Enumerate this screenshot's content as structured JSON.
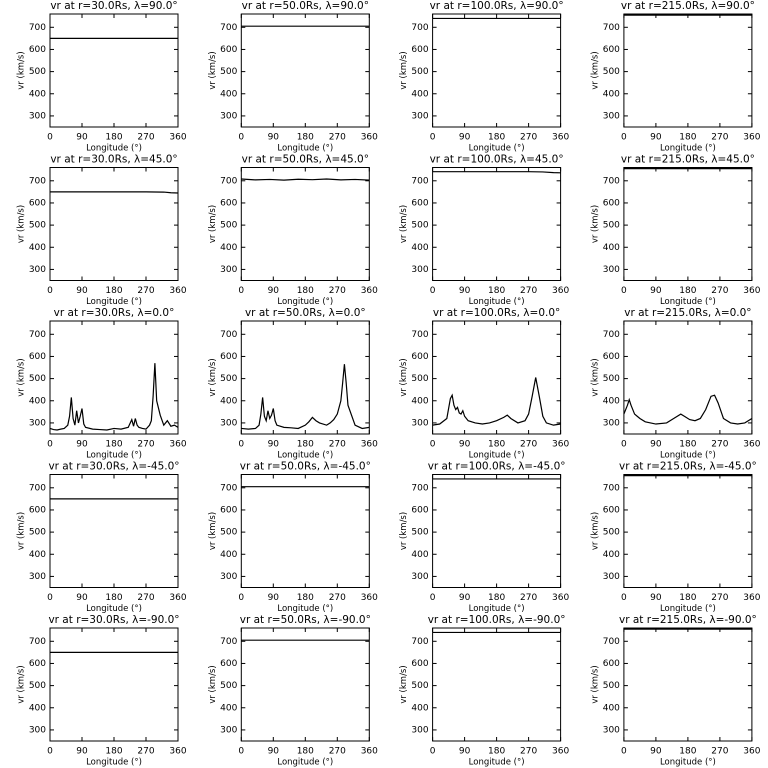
{
  "chart_data": [
    {
      "type": "line",
      "title": "vr at r=30.0Rs, λ=90.0°",
      "xlabel": "Longitude (°)",
      "ylabel": "vr (km/s)",
      "x": [
        0,
        360
      ],
      "values": [
        650,
        650
      ],
      "xlim": [
        0,
        360
      ],
      "ylim": [
        250,
        760
      ],
      "xticks": [
        0,
        90,
        180,
        270,
        360
      ],
      "yticks": [
        300,
        400,
        500,
        600,
        700
      ],
      "color": "#000000"
    },
    {
      "type": "line",
      "title": "vr at r=50.0Rs, λ=90.0°",
      "xlabel": "Longitude (°)",
      "ylabel": "vr (km/s)",
      "x": [
        0,
        360
      ],
      "values": [
        705,
        705
      ],
      "xlim": [
        0,
        360
      ],
      "ylim": [
        250,
        760
      ],
      "xticks": [
        0,
        90,
        180,
        270,
        360
      ],
      "yticks": [
        300,
        400,
        500,
        600,
        700
      ],
      "color": "#000000"
    },
    {
      "type": "line",
      "title": "vr at r=100.0Rs, λ=90.0°",
      "xlabel": "Longitude (°)",
      "ylabel": "vr (km/s)",
      "x": [
        0,
        360
      ],
      "values": [
        740,
        740
      ],
      "xlim": [
        0,
        360
      ],
      "ylim": [
        250,
        760
      ],
      "xticks": [
        0,
        90,
        180,
        270,
        360
      ],
      "yticks": [
        300,
        400,
        500,
        600,
        700
      ],
      "color": "#000000"
    },
    {
      "type": "line",
      "title": "vr at r=215.0Rs, λ=90.0°",
      "xlabel": "Longitude (°)",
      "ylabel": "vr (km/s)",
      "x": [
        0,
        360
      ],
      "values": [
        755,
        755
      ],
      "xlim": [
        0,
        360
      ],
      "ylim": [
        250,
        760
      ],
      "xticks": [
        0,
        90,
        180,
        270,
        360
      ],
      "yticks": [
        300,
        400,
        500,
        600,
        700
      ],
      "color": "#000000"
    },
    {
      "type": "line",
      "title": "vr at r=30.0Rs, λ=45.0°",
      "xlabel": "Longitude (°)",
      "ylabel": "vr (km/s)",
      "x": [
        0,
        90,
        180,
        270,
        320,
        340,
        360
      ],
      "values": [
        650,
        650,
        650,
        650,
        649,
        646,
        645
      ],
      "xlim": [
        0,
        360
      ],
      "ylim": [
        250,
        760
      ],
      "xticks": [
        0,
        90,
        180,
        270,
        360
      ],
      "yticks": [
        300,
        400,
        500,
        600,
        700
      ],
      "color": "#000000"
    },
    {
      "type": "line",
      "title": "vr at r=50.0Rs, λ=45.0°",
      "xlabel": "Longitude (°)",
      "ylabel": "vr (km/s)",
      "x": [
        0,
        40,
        80,
        120,
        160,
        200,
        240,
        280,
        320,
        360
      ],
      "values": [
        708,
        704,
        706,
        703,
        707,
        705,
        708,
        704,
        706,
        703
      ],
      "xlim": [
        0,
        360
      ],
      "ylim": [
        250,
        760
      ],
      "xticks": [
        0,
        90,
        180,
        270,
        360
      ],
      "yticks": [
        300,
        400,
        500,
        600,
        700
      ],
      "color": "#000000"
    },
    {
      "type": "line",
      "title": "vr at r=100.0Rs, λ=45.0°",
      "xlabel": "Longitude (°)",
      "ylabel": "vr (km/s)",
      "x": [
        0,
        90,
        180,
        270,
        310,
        340,
        360
      ],
      "values": [
        741,
        741,
        741,
        741,
        740,
        737,
        736
      ],
      "xlim": [
        0,
        360
      ],
      "ylim": [
        250,
        760
      ],
      "xticks": [
        0,
        90,
        180,
        270,
        360
      ],
      "yticks": [
        300,
        400,
        500,
        600,
        700
      ],
      "color": "#000000"
    },
    {
      "type": "line",
      "title": "vr at r=215.0Rs, λ=45.0°",
      "xlabel": "Longitude (°)",
      "ylabel": "vr (km/s)",
      "x": [
        0,
        360
      ],
      "values": [
        755,
        755
      ],
      "xlim": [
        0,
        360
      ],
      "ylim": [
        250,
        760
      ],
      "xticks": [
        0,
        90,
        180,
        270,
        360
      ],
      "yticks": [
        300,
        400,
        500,
        600,
        700
      ],
      "color": "#000000"
    },
    {
      "type": "line",
      "title": "vr at r=30.0Rs, λ=0.0°",
      "xlabel": "Longitude (°)",
      "ylabel": "vr (km/s)",
      "x": [
        0,
        10,
        20,
        30,
        40,
        50,
        55,
        60,
        65,
        70,
        75,
        80,
        85,
        90,
        95,
        100,
        120,
        140,
        160,
        180,
        200,
        220,
        230,
        235,
        240,
        245,
        250,
        260,
        270,
        280,
        285,
        290,
        295,
        300,
        310,
        320,
        330,
        340,
        350,
        360
      ],
      "values": [
        275,
        270,
        268,
        272,
        275,
        290,
        330,
        415,
        320,
        290,
        355,
        300,
        330,
        365,
        295,
        280,
        272,
        270,
        268,
        275,
        272,
        280,
        315,
        285,
        320,
        290,
        280,
        275,
        272,
        290,
        310,
        420,
        570,
        400,
        335,
        290,
        310,
        285,
        290,
        280
      ],
      "xlim": [
        0,
        360
      ],
      "ylim": [
        250,
        760
      ],
      "xticks": [
        0,
        90,
        180,
        270,
        360
      ],
      "yticks": [
        300,
        400,
        500,
        600,
        700
      ],
      "color": "#000000"
    },
    {
      "type": "line",
      "title": "vr at r=50.0Rs, λ=0.0°",
      "xlabel": "Longitude (°)",
      "ylabel": "vr (km/s)",
      "x": [
        0,
        20,
        40,
        50,
        55,
        60,
        65,
        70,
        75,
        80,
        85,
        90,
        95,
        100,
        120,
        140,
        160,
        180,
        190,
        200,
        210,
        220,
        240,
        250,
        260,
        270,
        280,
        285,
        290,
        295,
        300,
        320,
        340,
        360
      ],
      "values": [
        275,
        272,
        275,
        290,
        340,
        415,
        330,
        310,
        355,
        320,
        335,
        365,
        310,
        290,
        280,
        278,
        275,
        290,
        305,
        325,
        310,
        300,
        290,
        300,
        315,
        340,
        400,
        480,
        565,
        480,
        380,
        290,
        275,
        280
      ],
      "xlim": [
        0,
        360
      ],
      "ylim": [
        250,
        760
      ],
      "xticks": [
        0,
        90,
        180,
        270,
        360
      ],
      "yticks": [
        300,
        400,
        500,
        600,
        700
      ],
      "color": "#000000"
    },
    {
      "type": "line",
      "title": "vr at r=100.0Rs, λ=0.0°",
      "xlabel": "Longitude (°)",
      "ylabel": "vr (km/s)",
      "x": [
        0,
        20,
        40,
        50,
        55,
        60,
        65,
        70,
        75,
        80,
        85,
        90,
        100,
        120,
        140,
        160,
        180,
        200,
        210,
        220,
        240,
        260,
        270,
        280,
        290,
        300,
        310,
        320,
        340,
        360
      ],
      "values": [
        290,
        295,
        320,
        410,
        425,
        380,
        360,
        370,
        345,
        340,
        355,
        330,
        310,
        300,
        295,
        300,
        310,
        325,
        335,
        320,
        300,
        310,
        340,
        420,
        505,
        420,
        330,
        300,
        290,
        295
      ],
      "xlim": [
        0,
        360
      ],
      "ylim": [
        250,
        760
      ],
      "xticks": [
        0,
        90,
        180,
        270,
        360
      ],
      "yticks": [
        300,
        400,
        500,
        600,
        700
      ],
      "color": "#000000"
    },
    {
      "type": "line",
      "title": "vr at r=215.0Rs, λ=0.0°",
      "xlabel": "Longitude (°)",
      "ylabel": "vr (km/s)",
      "x": [
        0,
        10,
        15,
        20,
        30,
        45,
        60,
        90,
        120,
        140,
        160,
        170,
        185,
        200,
        215,
        230,
        245,
        255,
        265,
        280,
        300,
        320,
        340,
        360
      ],
      "values": [
        340,
        380,
        405,
        380,
        340,
        320,
        305,
        295,
        300,
        320,
        340,
        330,
        315,
        310,
        320,
        360,
        420,
        425,
        390,
        320,
        300,
        295,
        300,
        320
      ],
      "xlim": [
        0,
        360
      ],
      "ylim": [
        250,
        760
      ],
      "xticks": [
        0,
        90,
        180,
        270,
        360
      ],
      "yticks": [
        300,
        400,
        500,
        600,
        700
      ],
      "color": "#000000"
    },
    {
      "type": "line",
      "title": "vr at r=30.0Rs, λ=-45.0°",
      "xlabel": "Longitude (°)",
      "ylabel": "vr (km/s)",
      "x": [
        0,
        360
      ],
      "values": [
        650,
        650
      ],
      "xlim": [
        0,
        360
      ],
      "ylim": [
        250,
        760
      ],
      "xticks": [
        0,
        90,
        180,
        270,
        360
      ],
      "yticks": [
        300,
        400,
        500,
        600,
        700
      ],
      "color": "#000000"
    },
    {
      "type": "line",
      "title": "vr at r=50.0Rs, λ=-45.0°",
      "xlabel": "Longitude (°)",
      "ylabel": "vr (km/s)",
      "x": [
        0,
        360
      ],
      "values": [
        705,
        705
      ],
      "xlim": [
        0,
        360
      ],
      "ylim": [
        250,
        760
      ],
      "xticks": [
        0,
        90,
        180,
        270,
        360
      ],
      "yticks": [
        300,
        400,
        500,
        600,
        700
      ],
      "color": "#000000"
    },
    {
      "type": "line",
      "title": "vr at r=100.0Rs, λ=-45.0°",
      "xlabel": "Longitude (°)",
      "ylabel": "vr (km/s)",
      "x": [
        0,
        360
      ],
      "values": [
        740,
        740
      ],
      "xlim": [
        0,
        360
      ],
      "ylim": [
        250,
        760
      ],
      "xticks": [
        0,
        90,
        180,
        270,
        360
      ],
      "yticks": [
        300,
        400,
        500,
        600,
        700
      ],
      "color": "#000000"
    },
    {
      "type": "line",
      "title": "vr at r=215.0Rs, λ=-45.0°",
      "xlabel": "Longitude (°)",
      "ylabel": "vr (km/s)",
      "x": [
        0,
        360
      ],
      "values": [
        755,
        755
      ],
      "xlim": [
        0,
        360
      ],
      "ylim": [
        250,
        760
      ],
      "xticks": [
        0,
        90,
        180,
        270,
        360
      ],
      "yticks": [
        300,
        400,
        500,
        600,
        700
      ],
      "color": "#000000"
    },
    {
      "type": "line",
      "title": "vr at r=30.0Rs, λ=-90.0°",
      "xlabel": "Longitude (°)",
      "ylabel": "vr (km/s)",
      "x": [
        0,
        360
      ],
      "values": [
        650,
        650
      ],
      "xlim": [
        0,
        360
      ],
      "ylim": [
        250,
        760
      ],
      "xticks": [
        0,
        90,
        180,
        270,
        360
      ],
      "yticks": [
        300,
        400,
        500,
        600,
        700
      ],
      "color": "#000000"
    },
    {
      "type": "line",
      "title": "vr at r=50.0Rs, λ=-90.0°",
      "xlabel": "Longitude (°)",
      "ylabel": "vr (km/s)",
      "x": [
        0,
        360
      ],
      "values": [
        705,
        705
      ],
      "xlim": [
        0,
        360
      ],
      "ylim": [
        250,
        760
      ],
      "xticks": [
        0,
        90,
        180,
        270,
        360
      ],
      "yticks": [
        300,
        400,
        500,
        600,
        700
      ],
      "color": "#000000"
    },
    {
      "type": "line",
      "title": "vr at r=100.0Rs, λ=-90.0°",
      "xlabel": "Longitude (°)",
      "ylabel": "vr (km/s)",
      "x": [
        0,
        360
      ],
      "values": [
        740,
        740
      ],
      "xlim": [
        0,
        360
      ],
      "ylim": [
        250,
        760
      ],
      "xticks": [
        0,
        90,
        180,
        270,
        360
      ],
      "yticks": [
        300,
        400,
        500,
        600,
        700
      ],
      "color": "#000000"
    },
    {
      "type": "line",
      "title": "vr at r=215.0Rs, λ=-90.0°",
      "xlabel": "Longitude (°)",
      "ylabel": "vr (km/s)",
      "x": [
        0,
        360
      ],
      "values": [
        755,
        755
      ],
      "xlim": [
        0,
        360
      ],
      "ylim": [
        250,
        760
      ],
      "xticks": [
        0,
        90,
        180,
        270,
        360
      ],
      "yticks": [
        300,
        400,
        500,
        600,
        700
      ],
      "color": "#000000"
    }
  ]
}
